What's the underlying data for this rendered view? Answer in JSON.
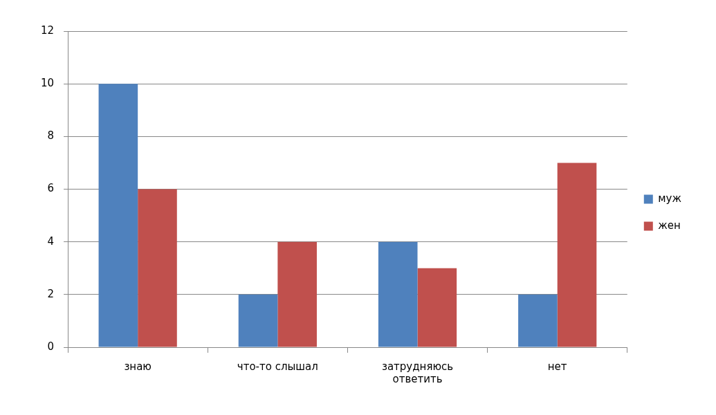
{
  "chart_data": {
    "type": "bar",
    "categories": [
      "знаю",
      "что-то слышал",
      "затрудняюсь ответить",
      "нет"
    ],
    "series": [
      {
        "name": "муж",
        "color": "#4f81bd",
        "values": [
          10,
          2,
          4,
          2
        ]
      },
      {
        "name": "жен",
        "color": "#c0504d",
        "values": [
          6,
          4,
          3,
          7
        ]
      }
    ],
    "ylim": [
      0,
      12
    ],
    "yticks": [
      0,
      2,
      4,
      6,
      8,
      10,
      12
    ],
    "grid": "y",
    "legend": "right"
  }
}
